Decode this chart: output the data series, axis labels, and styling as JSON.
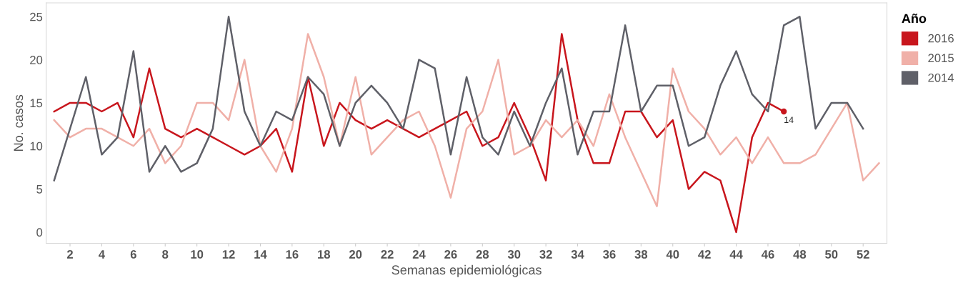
{
  "chart_data": {
    "type": "line",
    "xlabel": "Semanas epidemiológicas",
    "ylabel": "No. casos",
    "legend_title": "Año",
    "x": [
      1,
      2,
      3,
      4,
      5,
      6,
      7,
      8,
      9,
      10,
      11,
      12,
      13,
      14,
      15,
      16,
      17,
      18,
      19,
      20,
      21,
      22,
      23,
      24,
      25,
      26,
      27,
      28,
      29,
      30,
      31,
      32,
      33,
      34,
      35,
      36,
      37,
      38,
      39,
      40,
      41,
      42,
      43,
      44,
      45,
      46,
      47,
      48,
      49,
      50,
      51,
      52,
      53
    ],
    "series": [
      {
        "name": "2016",
        "color": "#c8161d",
        "values": [
          14,
          15,
          15,
          14,
          15,
          11,
          19,
          12,
          11,
          12,
          11,
          10,
          9,
          10,
          12,
          7,
          18,
          10,
          15,
          13,
          12,
          13,
          12,
          11,
          12,
          13,
          14,
          10,
          11,
          15,
          11,
          6,
          23,
          13,
          8,
          8,
          14,
          14,
          11,
          13,
          5,
          7,
          6,
          0,
          11,
          15,
          14,
          null,
          null,
          null,
          null,
          null,
          null
        ]
      },
      {
        "name": "2015",
        "color": "#f0b0a8",
        "values": [
          13,
          11,
          12,
          12,
          11,
          10,
          12,
          8,
          10,
          15,
          15,
          13,
          20,
          10,
          7,
          12,
          23,
          18,
          10,
          18,
          9,
          11,
          13,
          14,
          10,
          4,
          12,
          14,
          20,
          9,
          10,
          13,
          11,
          13,
          10,
          16,
          11,
          7,
          3,
          19,
          14,
          12,
          9,
          11,
          8,
          11,
          8,
          8,
          9,
          12,
          15,
          6,
          8
        ]
      },
      {
        "name": "2014",
        "color": "#5f6068",
        "values": [
          6,
          12,
          18,
          9,
          11,
          21,
          7,
          10,
          7,
          8,
          12,
          25,
          14,
          10,
          14,
          13,
          18,
          16,
          10,
          15,
          17,
          15,
          12,
          20,
          19,
          9,
          18,
          11,
          9,
          14,
          10,
          15,
          19,
          9,
          14,
          14,
          24,
          14,
          17,
          17,
          10,
          11,
          17,
          21,
          16,
          14,
          24,
          25,
          12,
          15,
          15,
          12,
          null
        ]
      }
    ],
    "annotations": [
      {
        "text": "14",
        "x": 47,
        "y": 14
      }
    ],
    "xlim": [
      0.5,
      53.5
    ],
    "ylim": [
      -1.3,
      26.6
    ],
    "xticks": [
      2,
      4,
      6,
      8,
      10,
      12,
      14,
      16,
      18,
      20,
      22,
      24,
      26,
      28,
      30,
      32,
      34,
      36,
      38,
      40,
      42,
      44,
      46,
      48,
      50,
      52
    ],
    "yticks": [
      0,
      5,
      10,
      15,
      20,
      25
    ],
    "grid": false,
    "legend": "top right",
    "marker": "none",
    "line_style": "solid"
  }
}
